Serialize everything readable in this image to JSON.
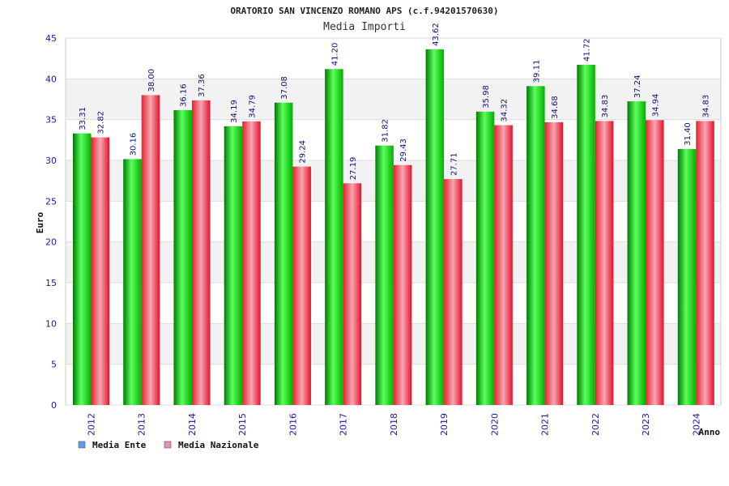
{
  "chart_data": {
    "type": "bar",
    "title": "ORATORIO SAN VINCENZO ROMANO APS (c.f.94201570630)",
    "subtitle": "Media Importi",
    "xlabel": "Anno",
    "ylabel": "Euro",
    "ylim": [
      0,
      45
    ],
    "yticks": [
      0,
      5,
      10,
      15,
      20,
      25,
      30,
      35,
      40,
      45
    ],
    "grid": true,
    "legend_position": "bottom-left",
    "categories": [
      "2012",
      "2013",
      "2014",
      "2015",
      "2016",
      "2017",
      "2018",
      "2019",
      "2020",
      "2021",
      "2022",
      "2023",
      "2024"
    ],
    "series": [
      {
        "name": "Media Ente",
        "color": "#00c000",
        "legend_color": "#5b9bf0",
        "values": [
          33.31,
          30.16,
          36.16,
          34.19,
          37.08,
          41.2,
          31.82,
          43.62,
          35.98,
          39.11,
          41.72,
          37.24,
          31.4
        ],
        "labels": [
          "33.31",
          "30.16",
          "36.16",
          "34.19",
          "37.08",
          "41.20",
          "31.82",
          "43.62",
          "35.98",
          "39.11",
          "41.72",
          "37.24",
          "31.40"
        ]
      },
      {
        "name": "Media Nazionale",
        "color": "#e8202e",
        "legend_color": "#e58fc0",
        "values": [
          32.82,
          38.0,
          37.36,
          34.79,
          29.24,
          27.19,
          29.43,
          27.71,
          34.32,
          34.68,
          34.83,
          34.94,
          34.83
        ],
        "labels": [
          "32.82",
          "38.00",
          "37.36",
          "34.79",
          "29.24",
          "27.19",
          "29.43",
          "27.71",
          "34.32",
          "34.68",
          "34.83",
          "34.94",
          "34.83"
        ]
      }
    ]
  }
}
